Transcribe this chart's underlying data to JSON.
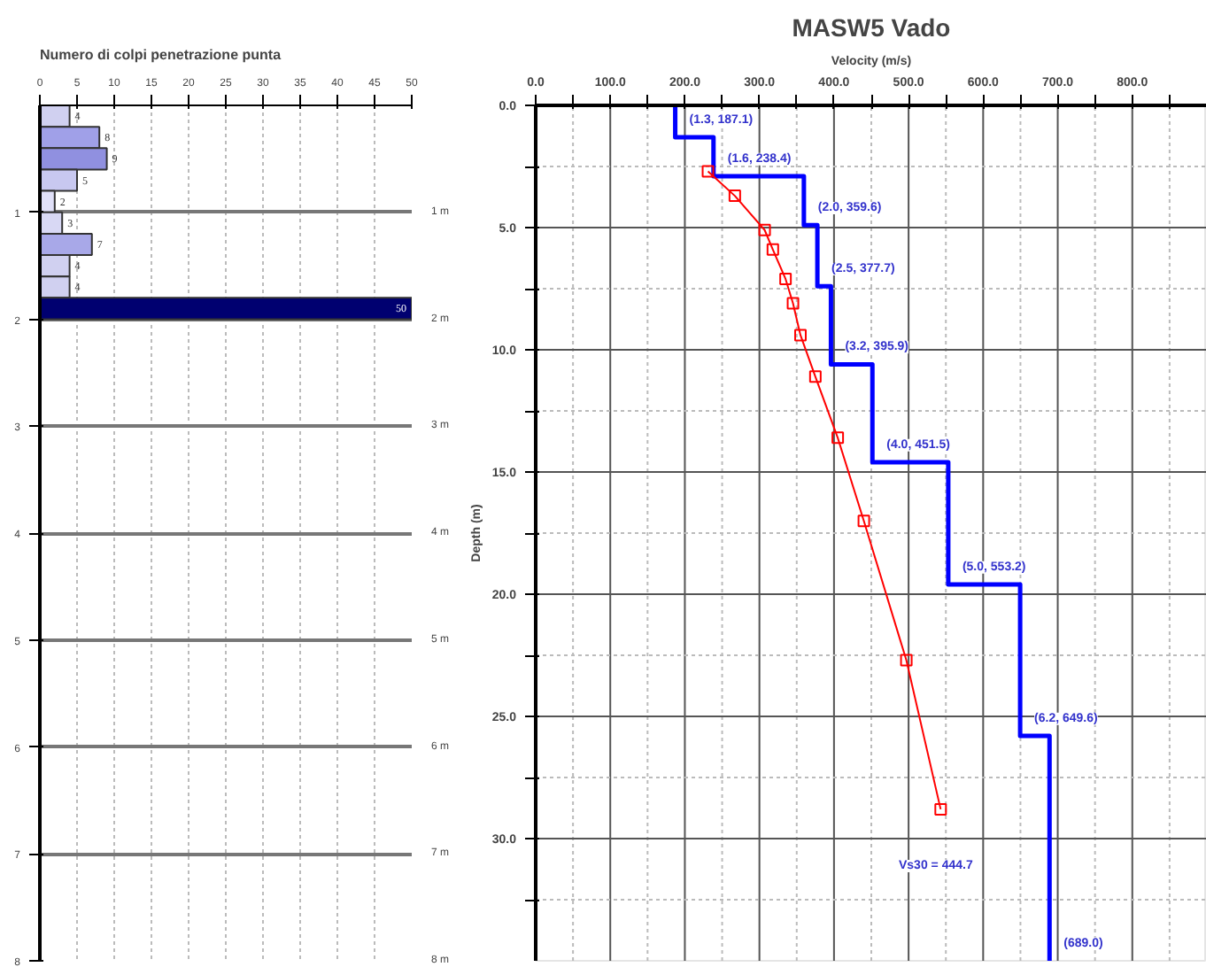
{
  "chart_data": [
    {
      "type": "bar",
      "orientation": "horizontal",
      "title": "Numero di colpi penetrazione punta",
      "x": [
        0.1,
        0.3,
        0.5,
        0.7,
        0.9,
        1.1,
        1.3,
        1.5,
        1.7,
        1.9
      ],
      "values": [
        4,
        8,
        9,
        5,
        2,
        3,
        7,
        4,
        4,
        50
      ],
      "colors": [
        "#d0d0f0",
        "#a0a0e8",
        "#9090e0",
        "#c8c8f0",
        "#e0e0f8",
        "#d8d8f4",
        "#a8a8e8",
        "#d0d0f0",
        "#d0d0f0",
        "#000070"
      ],
      "data_labels": true,
      "xlim": [
        0,
        50
      ],
      "xticks": [
        0,
        5,
        10,
        15,
        20,
        25,
        30,
        35,
        40,
        45,
        50
      ],
      "ylim": [
        8,
        0
      ],
      "yticks": [
        1,
        2,
        3,
        4,
        5,
        6,
        7,
        8
      ],
      "y2lim": [
        8,
        0
      ],
      "y2ticks": [
        {
          "value": 1,
          "label": "1 m"
        },
        {
          "value": 2,
          "label": "2 m"
        },
        {
          "value": 3,
          "label": "3 m"
        },
        {
          "value": 4,
          "label": "4 m"
        },
        {
          "value": 5,
          "label": "5 m"
        },
        {
          "value": 6,
          "label": "6 m"
        },
        {
          "value": 7,
          "label": "7 m"
        },
        {
          "value": 8,
          "label": "8 m"
        }
      ],
      "grid": true
    },
    {
      "type": "line",
      "title": "MASW5 Vado",
      "xlabel": "Velocity (m/s)",
      "ylabel": "Depth (m)",
      "xlim": [
        0,
        900
      ],
      "xticks": [
        {
          "value": 0,
          "label": "0.0"
        },
        {
          "value": 50,
          "label": null
        },
        {
          "value": 100,
          "label": "100.0"
        },
        {
          "value": 150,
          "label": null
        },
        {
          "value": 200,
          "label": "200.0"
        },
        {
          "value": 250,
          "label": null
        },
        {
          "value": 300,
          "label": "300.0"
        },
        {
          "value": 350,
          "label": null
        },
        {
          "value": 400,
          "label": "400.0"
        },
        {
          "value": 450,
          "label": null
        },
        {
          "value": 500,
          "label": "500.0"
        },
        {
          "value": 550,
          "label": null
        },
        {
          "value": 600,
          "label": "600.0"
        },
        {
          "value": 650,
          "label": null
        },
        {
          "value": 700,
          "label": "700.0"
        },
        {
          "value": 750,
          "label": null
        },
        {
          "value": 800,
          "label": "800.0"
        },
        {
          "value": 850,
          "label": null
        }
      ],
      "ylim": [
        35,
        0
      ],
      "yticks": [
        {
          "value": 0,
          "label": "0.0"
        },
        {
          "value": 2.5,
          "label": null
        },
        {
          "value": 5,
          "label": "5.0"
        },
        {
          "value": 7.5,
          "label": null
        },
        {
          "value": 10,
          "label": "10.0"
        },
        {
          "value": 12.5,
          "label": null
        },
        {
          "value": 15,
          "label": "15.0"
        },
        {
          "value": 17.5,
          "label": null
        },
        {
          "value": 20,
          "label": "20.0"
        },
        {
          "value": 22.5,
          "label": null
        },
        {
          "value": 25,
          "label": "25.0"
        },
        {
          "value": 27.5,
          "label": null
        },
        {
          "value": 30,
          "label": "30.0"
        },
        {
          "value": 32.5,
          "label": null
        }
      ],
      "grid": true,
      "series": [
        {
          "color": "#0000ff",
          "x": [
            187.1,
            187.1,
            238.4,
            238.4,
            359.6,
            359.6,
            377.7,
            377.7,
            395.9,
            395.9,
            451.5,
            451.5,
            553.2,
            553.2,
            649.6,
            649.6,
            689.0,
            689.0
          ],
          "values": [
            0,
            1.3,
            1.3,
            2.9,
            2.9,
            4.9,
            4.9,
            7.4,
            7.4,
            10.6,
            10.6,
            14.6,
            14.6,
            19.6,
            19.6,
            25.8,
            25.8,
            35
          ]
        },
        {
          "color": "#ff0000",
          "marker": "square",
          "x": [
            231,
            267,
            307,
            318,
            335,
            345,
            355,
            375,
            405,
            440,
            497,
            543
          ],
          "values": [
            2.7,
            3.7,
            5.1,
            5.9,
            7.1,
            8.1,
            9.4,
            11.1,
            13.6,
            17.0,
            22.7,
            28.8
          ]
        }
      ],
      "annotations": [
        {
          "text": "(1.3, 187.1)",
          "x": 187.1,
          "y": 0.6
        },
        {
          "text": "(1.6, 238.4)",
          "x": 238.4,
          "y": 2.2
        },
        {
          "text": "(2.0, 359.6)",
          "x": 359.6,
          "y": 4.2
        },
        {
          "text": "(2.5, 377.7)",
          "x": 377.7,
          "y": 6.7
        },
        {
          "text": "(3.2, 395.9)",
          "x": 395.9,
          "y": 9.9
        },
        {
          "text": "(4.0, 451.5)",
          "x": 451.5,
          "y": 13.9
        },
        {
          "text": "(5.0, 553.2)",
          "x": 553.2,
          "y": 18.9
        },
        {
          "text": "(6.2, 649.6)",
          "x": 649.6,
          "y": 25.1
        },
        {
          "text": "(689.0)",
          "x": 689.0,
          "y": 34.3
        },
        "Vs30 = 444.7"
      ]
    }
  ]
}
